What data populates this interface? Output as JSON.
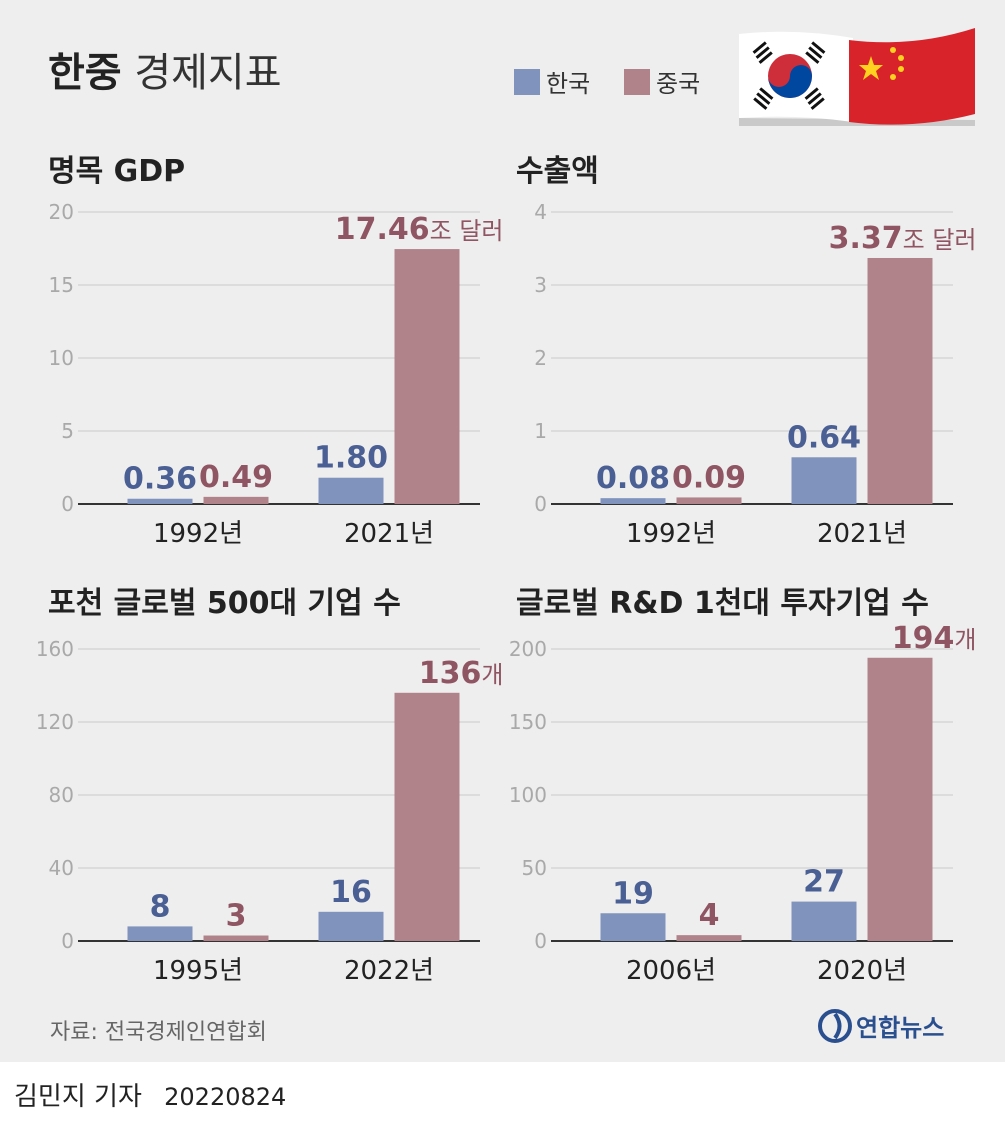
{
  "title": {
    "bold": "한중",
    "regular": "경제지표"
  },
  "legend": [
    {
      "label": "한국",
      "color": "#7f93bd"
    },
    {
      "label": "중국",
      "color": "#b0828a"
    }
  ],
  "colors": {
    "korea_bar": "#7f93bd",
    "china_bar": "#b0828a",
    "korea_label": "#4a5f93",
    "china_label": "#8f5563"
  },
  "flags": [
    "korea-flag",
    "china-flag"
  ],
  "chart_data": [
    {
      "type": "bar",
      "title": "명목 GDP",
      "categories": [
        "1992년",
        "2021년"
      ],
      "series": [
        {
          "name": "한국",
          "values": [
            0.36,
            1.8
          ]
        },
        {
          "name": "중국",
          "values": [
            0.49,
            17.46
          ]
        }
      ],
      "value_labels": [
        [
          "0.36",
          "1.80"
        ],
        [
          "0.49",
          "17.46"
        ]
      ],
      "unit": "조 달러",
      "yticks": [
        0,
        5,
        10,
        15,
        20
      ],
      "ylim": [
        0,
        20
      ],
      "grid": true
    },
    {
      "type": "bar",
      "title": "수출액",
      "categories": [
        "1992년",
        "2021년"
      ],
      "series": [
        {
          "name": "한국",
          "values": [
            0.08,
            0.64
          ]
        },
        {
          "name": "중국",
          "values": [
            0.09,
            3.37
          ]
        }
      ],
      "value_labels": [
        [
          "0.08",
          "0.64"
        ],
        [
          "0.09",
          "3.37"
        ]
      ],
      "unit": "조 달러",
      "yticks": [
        0,
        1,
        2,
        3,
        4
      ],
      "ylim": [
        0,
        4
      ],
      "grid": true
    },
    {
      "type": "bar",
      "title": "포천 글로벌 500대 기업 수",
      "categories": [
        "1995년",
        "2022년"
      ],
      "series": [
        {
          "name": "한국",
          "values": [
            8,
            16
          ]
        },
        {
          "name": "중국",
          "values": [
            3,
            136
          ]
        }
      ],
      "value_labels": [
        [
          "8",
          "16"
        ],
        [
          "3",
          "136"
        ]
      ],
      "unit": "개",
      "yticks": [
        0,
        40,
        80,
        120,
        160
      ],
      "ylim": [
        0,
        160
      ],
      "grid": true
    },
    {
      "type": "bar",
      "title": "글로벌 R&D 1천대 투자기업 수",
      "categories": [
        "2006년",
        "2020년"
      ],
      "series": [
        {
          "name": "한국",
          "values": [
            19,
            27
          ]
        },
        {
          "name": "중국",
          "values": [
            4,
            194
          ]
        }
      ],
      "value_labels": [
        [
          "19",
          "27"
        ],
        [
          "4",
          "194"
        ]
      ],
      "unit": "개",
      "yticks": [
        0,
        50,
        100,
        150,
        200
      ],
      "ylim": [
        0,
        200
      ],
      "grid": true
    }
  ],
  "source": "자료: 전국경제인연합회",
  "logo": "연합뉴스",
  "byline": {
    "author": "김민지 기자",
    "date": "20220824"
  }
}
